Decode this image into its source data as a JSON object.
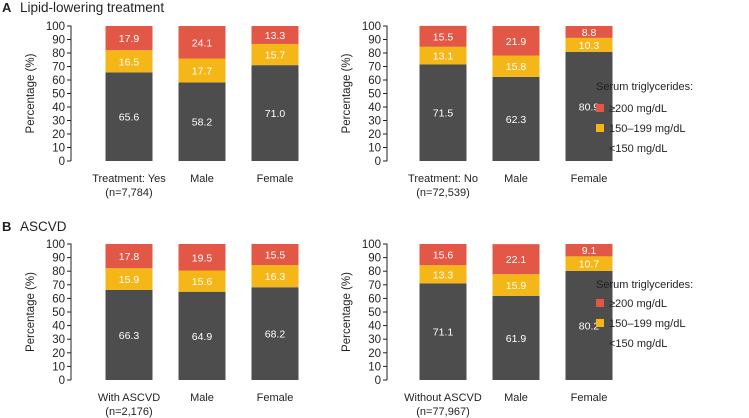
{
  "colors": {
    "low": "#4d4d4d",
    "mid": "#f5b617",
    "high": "#e25745",
    "text": "#231f20"
  },
  "legend": {
    "title": "Serum triglycerides:",
    "items": [
      {
        "key": "high",
        "label": "≥200 mg/dL"
      },
      {
        "key": "mid",
        "label": "150–199 mg/dL"
      },
      {
        "key": "low",
        "label": "<150 mg/dL"
      }
    ]
  },
  "sections": [
    {
      "letter": "A",
      "title": "Lipid-lowering treatment"
    },
    {
      "letter": "B",
      "title": "ASCVD"
    }
  ],
  "chart_data": [
    {
      "type": "bar",
      "stacked": true,
      "section": "A",
      "ylabel": "Percentage (%)",
      "ylim": [
        0,
        100
      ],
      "yticks": [
        0,
        10,
        20,
        30,
        40,
        50,
        60,
        70,
        80,
        90,
        100
      ],
      "categories": [
        [
          "Treatment: Yes",
          "(n=7,784)"
        ],
        [
          "Male"
        ],
        [
          "Female"
        ]
      ],
      "series": [
        {
          "name": "<150 mg/dL",
          "key": "low",
          "values": [
            65.6,
            58.2,
            71.0
          ],
          "labels": [
            "65.6",
            "58.2",
            "71.0"
          ]
        },
        {
          "name": "150–199 mg/dL",
          "key": "mid",
          "values": [
            16.5,
            17.7,
            15.7
          ],
          "labels": [
            "16.5",
            "17.7",
            "15.7"
          ]
        },
        {
          "name": "≥200 mg/dL",
          "key": "high",
          "values": [
            17.9,
            24.1,
            13.3
          ],
          "labels": [
            "17.9",
            "24.1",
            "13.3"
          ]
        }
      ]
    },
    {
      "type": "bar",
      "stacked": true,
      "section": "A",
      "ylabel": "Percentage (%)",
      "ylim": [
        0,
        100
      ],
      "yticks": [
        0,
        10,
        20,
        30,
        40,
        50,
        60,
        70,
        80,
        90,
        100
      ],
      "categories": [
        [
          "Treatment: No",
          "(n=72,539)"
        ],
        [
          "Male"
        ],
        [
          "Female"
        ]
      ],
      "series": [
        {
          "name": "<150 mg/dL",
          "key": "low",
          "values": [
            71.5,
            62.3,
            80.9
          ],
          "labels": [
            "71.5",
            "62.3",
            "80.9"
          ]
        },
        {
          "name": "150–199 mg/dL",
          "key": "mid",
          "values": [
            13.1,
            15.8,
            10.3
          ],
          "labels": [
            "13.1",
            "15.8",
            "10.3"
          ]
        },
        {
          "name": "≥200 mg/dL",
          "key": "high",
          "values": [
            15.5,
            21.9,
            8.8
          ],
          "labels": [
            "15.5",
            "21.9",
            "8.8"
          ]
        }
      ]
    },
    {
      "type": "bar",
      "stacked": true,
      "section": "B",
      "ylabel": "Percentage (%)",
      "ylim": [
        0,
        100
      ],
      "yticks": [
        0,
        10,
        20,
        30,
        40,
        50,
        60,
        70,
        80,
        90,
        100
      ],
      "categories": [
        [
          "With ASCVD",
          "(n=2,176)"
        ],
        [
          "Male"
        ],
        [
          "Female"
        ]
      ],
      "series": [
        {
          "name": "<150 mg/dL",
          "key": "low",
          "values": [
            66.3,
            64.9,
            68.2
          ],
          "labels": [
            "66.3",
            "64.9",
            "68.2"
          ]
        },
        {
          "name": "150–199 mg/dL",
          "key": "mid",
          "values": [
            15.9,
            15.6,
            16.3
          ],
          "labels": [
            "15.9",
            "15.6",
            "16.3"
          ]
        },
        {
          "name": "≥200 mg/dL",
          "key": "high",
          "values": [
            17.8,
            19.5,
            15.5
          ],
          "labels": [
            "17.8",
            "19.5",
            "15.5"
          ]
        }
      ]
    },
    {
      "type": "bar",
      "stacked": true,
      "section": "B",
      "ylabel": "Percentage (%)",
      "ylim": [
        0,
        100
      ],
      "yticks": [
        0,
        10,
        20,
        30,
        40,
        50,
        60,
        70,
        80,
        90,
        100
      ],
      "categories": [
        [
          "Without ASCVD",
          "(n=77,967)"
        ],
        [
          "Male"
        ],
        [
          "Female"
        ]
      ],
      "series": [
        {
          "name": "<150 mg/dL",
          "key": "low",
          "values": [
            71.1,
            61.9,
            80.2
          ],
          "labels": [
            "71.1",
            "61.9",
            "80.2"
          ]
        },
        {
          "name": "150–199 mg/dL",
          "key": "mid",
          "values": [
            13.3,
            15.9,
            10.7
          ],
          "labels": [
            "13.3",
            "15.9",
            "10.7"
          ]
        },
        {
          "name": "≥200 mg/dL",
          "key": "high",
          "values": [
            15.6,
            22.1,
            9.1
          ],
          "labels": [
            "15.6",
            "22.1",
            "9.1"
          ]
        }
      ]
    }
  ]
}
